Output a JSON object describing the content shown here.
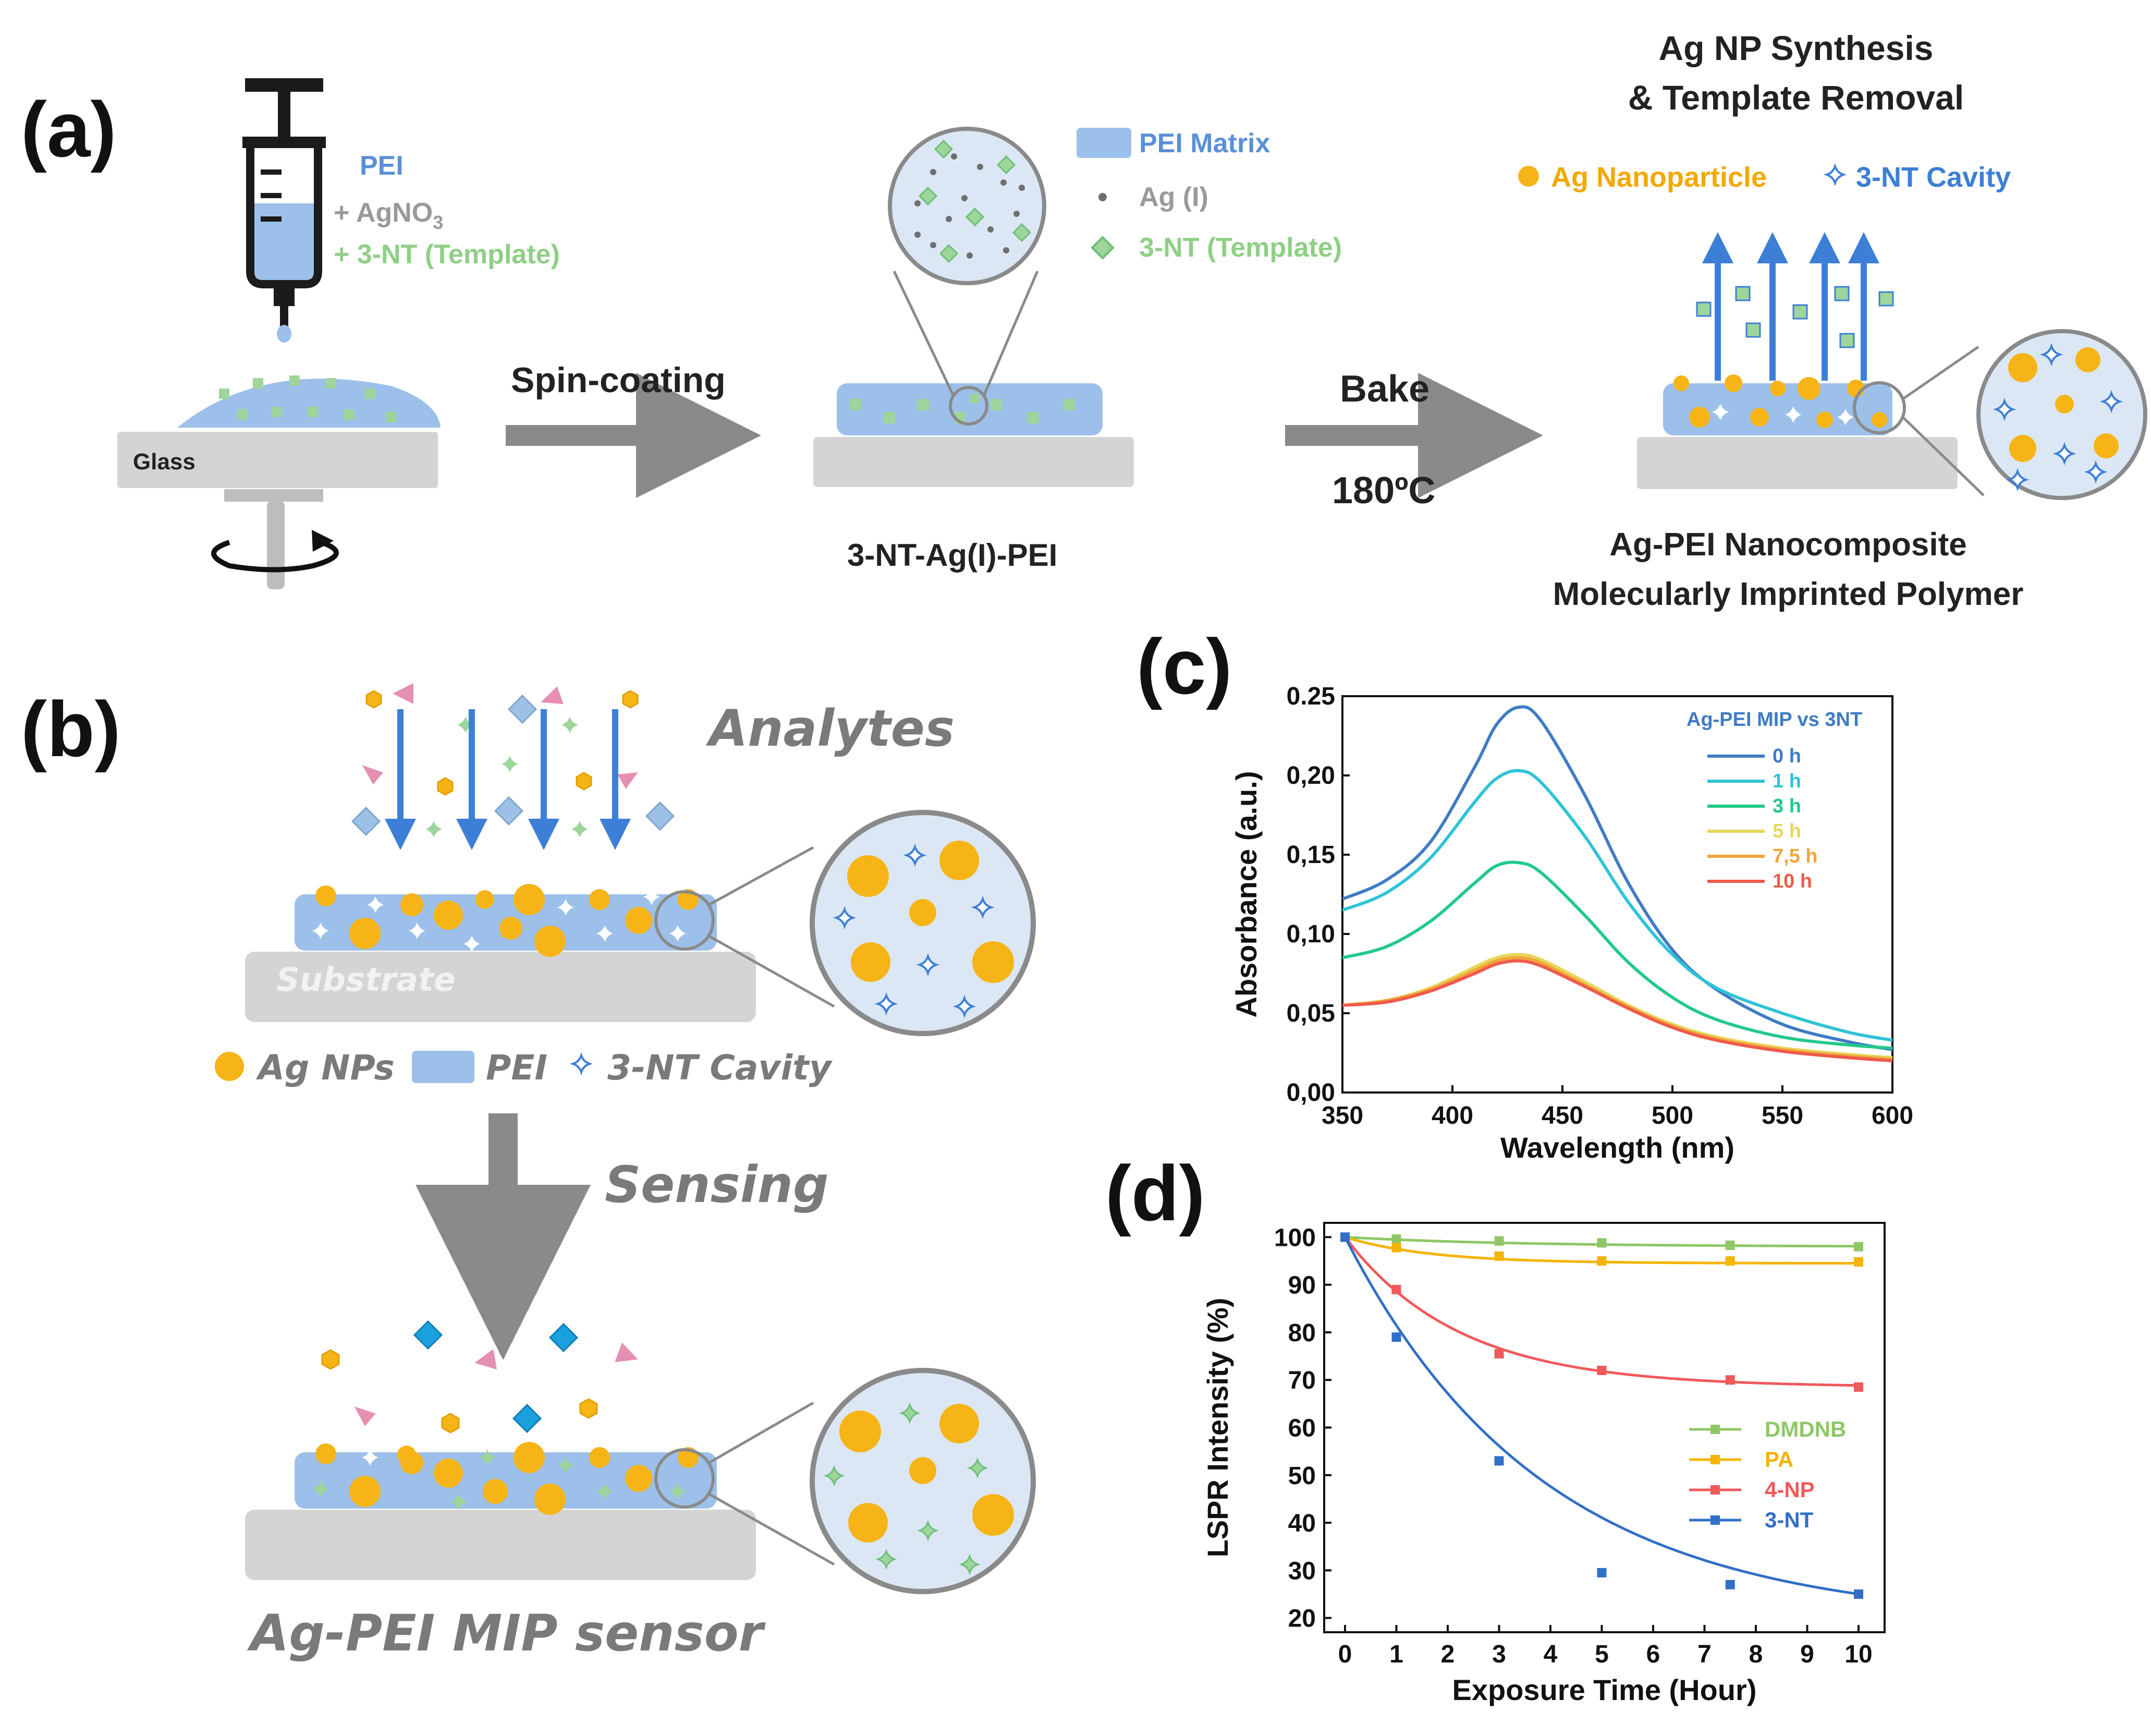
{
  "panels": {
    "a": "(a)",
    "b": "(b)",
    "c": "(c)",
    "d": "(d)"
  },
  "panel_a": {
    "syringe_labels": {
      "pei": "PEI",
      "agno3": "+ AgNO",
      "agno3_sub": "3",
      "template": "+ 3-NT (Template)"
    },
    "glass_label": "Glass",
    "spin_label": "Spin-coating",
    "film_label": "3-NT-Ag(I)-PEI",
    "legend_mid": {
      "matrix": "PEI Matrix",
      "ag": "Ag (I)",
      "template": "3-NT (Template)"
    },
    "bake_label": "Bake",
    "bake_temp": "180ºC",
    "synthesis_title": [
      "Ag NP Synthesis",
      "& Template Removal"
    ],
    "legend_right": {
      "np": "Ag Nanoparticle",
      "cavity": "3-NT Cavity"
    },
    "product_label": [
      "Ag-PEI Nanocomposite",
      "Molecularly Imprinted Polymer"
    ]
  },
  "panel_b": {
    "analytes_label": "Analytes",
    "substrate_label": "Substrate",
    "legend": {
      "np": "Ag NPs",
      "pei": "PEI",
      "cavity": "3-NT Cavity"
    },
    "sensing_label": "Sensing",
    "sensor_label": "Ag-PEI MIP sensor"
  },
  "colors": {
    "pei": "#9cc0ea",
    "pei_dark": "#7aa3d8",
    "gold": "#f6b416",
    "green": "#9ed59a",
    "pink": "#e58fb2",
    "diamond": "#9cc0e6",
    "cyan": "#1aa0dd",
    "grey": "#cfcfcf",
    "arrow": "#3d7fd6"
  },
  "chart_data": [
    {
      "id": "c",
      "type": "line",
      "title": "Ag-PEI MIP vs 3NT",
      "xlabel": "Wavelength (nm)",
      "ylabel": "Absorbance (a.u.)",
      "xlim": [
        350,
        600
      ],
      "ylim": [
        0,
        0.25
      ],
      "xticks": [
        "350",
        "400",
        "450",
        "500",
        "550",
        "600"
      ],
      "yticks": [
        "0,00",
        "0,05",
        "0,10",
        "0,15",
        "0,20",
        "0.25"
      ],
      "series": [
        {
          "name": "0 h",
          "color": "#3f7cc4",
          "x": [
            350,
            370,
            390,
            410,
            420,
            430,
            440,
            460,
            480,
            500,
            520,
            550,
            580,
            600
          ],
          "y": [
            0.122,
            0.134,
            0.158,
            0.205,
            0.232,
            0.243,
            0.235,
            0.188,
            0.132,
            0.09,
            0.065,
            0.043,
            0.032,
            0.027
          ]
        },
        {
          "name": "1 h",
          "color": "#2fc3d6",
          "x": [
            350,
            370,
            390,
            410,
            420,
            430,
            440,
            460,
            480,
            500,
            520,
            550,
            580,
            600
          ],
          "y": [
            0.115,
            0.126,
            0.148,
            0.183,
            0.198,
            0.203,
            0.196,
            0.162,
            0.12,
            0.087,
            0.066,
            0.05,
            0.038,
            0.033
          ]
        },
        {
          "name": "3 h",
          "color": "#23c98a",
          "x": [
            350,
            370,
            390,
            410,
            420,
            430,
            440,
            460,
            480,
            500,
            520,
            550,
            580,
            600
          ],
          "y": [
            0.085,
            0.092,
            0.108,
            0.132,
            0.143,
            0.145,
            0.139,
            0.112,
            0.082,
            0.06,
            0.046,
            0.035,
            0.03,
            0.028
          ]
        },
        {
          "name": "5 h",
          "color": "#e6d85a",
          "x": [
            350,
            370,
            390,
            410,
            420,
            430,
            440,
            460,
            480,
            500,
            520,
            550,
            580,
            600
          ],
          "y": [
            0.055,
            0.058,
            0.066,
            0.079,
            0.085,
            0.087,
            0.084,
            0.07,
            0.055,
            0.043,
            0.035,
            0.028,
            0.024,
            0.022
          ]
        },
        {
          "name": "7,5 h",
          "color": "#f0a63a",
          "x": [
            350,
            370,
            390,
            410,
            420,
            430,
            440,
            460,
            480,
            500,
            520,
            550,
            580,
            600
          ],
          "y": [
            0.055,
            0.058,
            0.065,
            0.077,
            0.083,
            0.085,
            0.082,
            0.068,
            0.054,
            0.042,
            0.034,
            0.027,
            0.023,
            0.021
          ]
        },
        {
          "name": "10 h",
          "color": "#ef5a4a",
          "x": [
            350,
            370,
            390,
            410,
            420,
            430,
            440,
            460,
            480,
            500,
            520,
            550,
            580,
            600
          ],
          "y": [
            0.055,
            0.057,
            0.064,
            0.075,
            0.081,
            0.083,
            0.08,
            0.067,
            0.053,
            0.041,
            0.033,
            0.026,
            0.022,
            0.02
          ]
        }
      ]
    },
    {
      "id": "d",
      "type": "scatter",
      "xlabel": "Exposure Time (Hour)",
      "ylabel": "LSPR Intensity (%)",
      "xlim": [
        0,
        10
      ],
      "ylim": [
        17,
        103
      ],
      "xticks": [
        "0",
        "1",
        "2",
        "3",
        "4",
        "5",
        "6",
        "7",
        "8",
        "9",
        "10"
      ],
      "yticks": [
        "20",
        "30",
        "40",
        "50",
        "60",
        "70",
        "80",
        "90",
        "100"
      ],
      "series": [
        {
          "name": "DMDNB",
          "color": "#8fc767",
          "x": [
            0,
            1,
            3,
            5,
            7.5,
            10
          ],
          "y": [
            100,
            99.6,
            99.2,
            98.8,
            98.3,
            98
          ],
          "fit_end": 98
        },
        {
          "name": "PA",
          "color": "#f4b400",
          "x": [
            0,
            1,
            3,
            5,
            7.5,
            10
          ],
          "y": [
            100,
            97.8,
            96,
            95,
            95,
            94.8
          ],
          "fit_end": 94.5,
          "fit_k": 0.6
        },
        {
          "name": "4-NP",
          "color": "#ef5a5a",
          "x": [
            0,
            1,
            3,
            5,
            7.5,
            10
          ],
          "y": [
            100,
            89,
            75.5,
            72,
            70,
            68.5
          ],
          "fit_end": 68.5,
          "fit_k": 0.45
        },
        {
          "name": "3-NT",
          "color": "#2f6fc7",
          "x": [
            0,
            1,
            3,
            5,
            7.5,
            10
          ],
          "y": [
            100,
            79,
            53,
            29.5,
            27,
            25
          ],
          "fit_end": 19,
          "fit_k": 0.26
        }
      ]
    }
  ]
}
